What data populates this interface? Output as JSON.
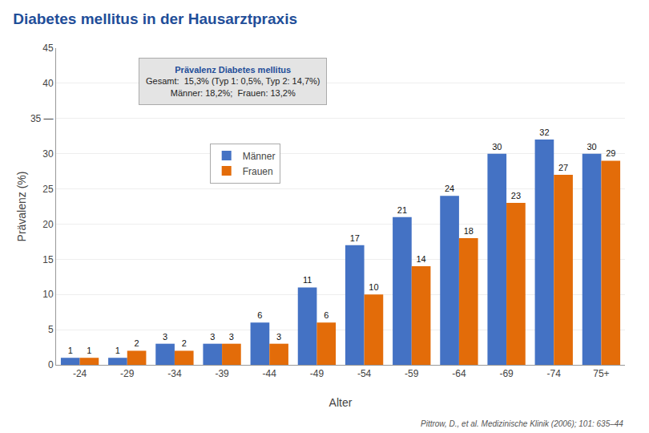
{
  "chart_data": {
    "type": "bar",
    "title": "Diabetes mellitus in der Hausarztpraxis",
    "xlabel": "Alter",
    "ylabel": "Prävalenz (%)",
    "categories": [
      "-24",
      "-29",
      "-34",
      "-39",
      "-44",
      "-49",
      "-54",
      "-59",
      "-64",
      "-69",
      "-74",
      "75+"
    ],
    "series": [
      {
        "name": "Männer",
        "color": "#4472C4",
        "values": [
          1,
          1,
          3,
          3,
          6,
          11,
          17,
          21,
          24,
          30,
          32,
          30
        ]
      },
      {
        "name": "Frauen",
        "color": "#E36C09",
        "values": [
          1,
          2,
          2,
          3,
          3,
          6,
          10,
          14,
          18,
          23,
          27,
          29
        ]
      }
    ],
    "ylim": [
      0,
      45
    ],
    "yticks": [
      0,
      5,
      10,
      15,
      20,
      25,
      30,
      {
        "value": 35,
        "label": "35 —"
      },
      40,
      45
    ],
    "grid": true,
    "legend": "upper left",
    "data_labels": true,
    "annotations": [
      "Prävalenz Diabetes mellitus",
      "Gesamt:  15,3% (Typ 1: 0,5%, Typ 2: 14,7%)",
      "Männer: 18,2%;  Frauen: 13,2%"
    ],
    "footer": "Pittrow, D., et al. Medizinische Klinik (2006); 101: 635–44"
  }
}
